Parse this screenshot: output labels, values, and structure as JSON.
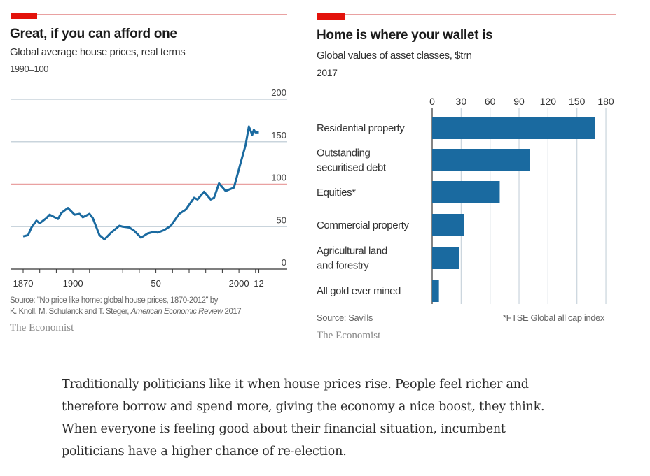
{
  "colors": {
    "accent_red": "#e3120b",
    "series_blue": "#1a6aa0",
    "gridline": "#c9d4dc",
    "ref_line": "#e9a1a1"
  },
  "left": {
    "title": "Great, if you can afford one",
    "subtitle": "Global average house prices, real terms",
    "note": "1990=100",
    "source_line1": "Source: \"No price like home: global house prices, 1870-2012\" by",
    "source_line2_prefix": "K. Knoll, M. Schularick and T. Steger, ",
    "source_line2_journal": "American Economic Review",
    "source_line2_suffix": " 2017",
    "brand": "The Economist"
  },
  "right": {
    "title": "Home is where your wallet is",
    "subtitle": "Global values of asset classes, $trn",
    "note": "2017",
    "source": "Source: Savills",
    "footnote": "*FTSE Global all cap index",
    "brand": "The Economist"
  },
  "chart_data": [
    {
      "type": "line",
      "title": "Great, if you can afford one",
      "subtitle": "Global average house prices, real terms",
      "ylabel": "1990=100",
      "xlim": [
        1870,
        2012
      ],
      "ylim": [
        0,
        200
      ],
      "yticks": [
        "0",
        "50",
        "100",
        "150",
        "200"
      ],
      "xtick_labels": [
        {
          "year": 1870,
          "label": "1870"
        },
        {
          "year": 1900,
          "label": "1900"
        },
        {
          "year": 1950,
          "label": "50"
        },
        {
          "year": 2000,
          "label": "2000"
        },
        {
          "year": 2012,
          "label": "12"
        }
      ],
      "reference_line": 100,
      "grid": true,
      "series": [
        {
          "x": [
            1870,
            1873,
            1875,
            1878,
            1880,
            1884,
            1886,
            1891,
            1893,
            1897,
            1901,
            1904,
            1906,
            1910,
            1912,
            1916,
            1919,
            1923,
            1928,
            1930,
            1934,
            1937,
            1941,
            1945,
            1949,
            1951,
            1955,
            1959,
            1964,
            1968,
            1973,
            1975,
            1979,
            1983,
            1985,
            1988,
            1992,
            1997,
            2001,
            2004,
            2006,
            2008,
            2009,
            2010,
            2012
          ],
          "y": [
            38.5,
            40,
            49,
            57,
            54,
            60,
            64,
            59,
            66,
            72,
            64,
            65,
            61,
            65,
            60,
            40,
            35,
            43,
            51,
            50,
            49,
            45,
            37,
            42,
            44,
            43,
            46,
            51,
            65,
            70,
            84,
            82,
            91,
            82,
            84,
            101,
            92,
            96,
            125,
            146,
            168,
            158,
            164,
            161,
            161
          ]
        }
      ]
    },
    {
      "type": "bar",
      "orientation": "horizontal",
      "title": "Home is where your wallet is",
      "subtitle": "Global values of asset classes, $trn",
      "note": "2017",
      "categories": [
        "Residential property",
        "Outstanding securitised debt",
        "Equities*",
        "Commercial property",
        "Agricultural land and forestry",
        "All gold ever mined"
      ],
      "category_lines": [
        [
          "Residential property"
        ],
        [
          "Outstanding",
          "securitised debt"
        ],
        [
          "Equities*"
        ],
        [
          "Commercial property"
        ],
        [
          "Agricultural land",
          "and forestry"
        ],
        [
          "All gold ever mined"
        ]
      ],
      "values": [
        169,
        101,
        70,
        33,
        28,
        7
      ],
      "xlim": [
        0,
        180
      ],
      "xticks": [
        "0",
        "30",
        "60",
        "90",
        "120",
        "150",
        "180"
      ],
      "grid": true
    }
  ],
  "article": {
    "lines": [
      "Traditionally politicians like it when house prices rise. People feel richer and",
      "therefore borrow and spend more, giving the economy a nice boost, they think.",
      "When everyone is feeling good about their financial situation, incumbent",
      "politicians have a higher chance of re-election."
    ]
  }
}
